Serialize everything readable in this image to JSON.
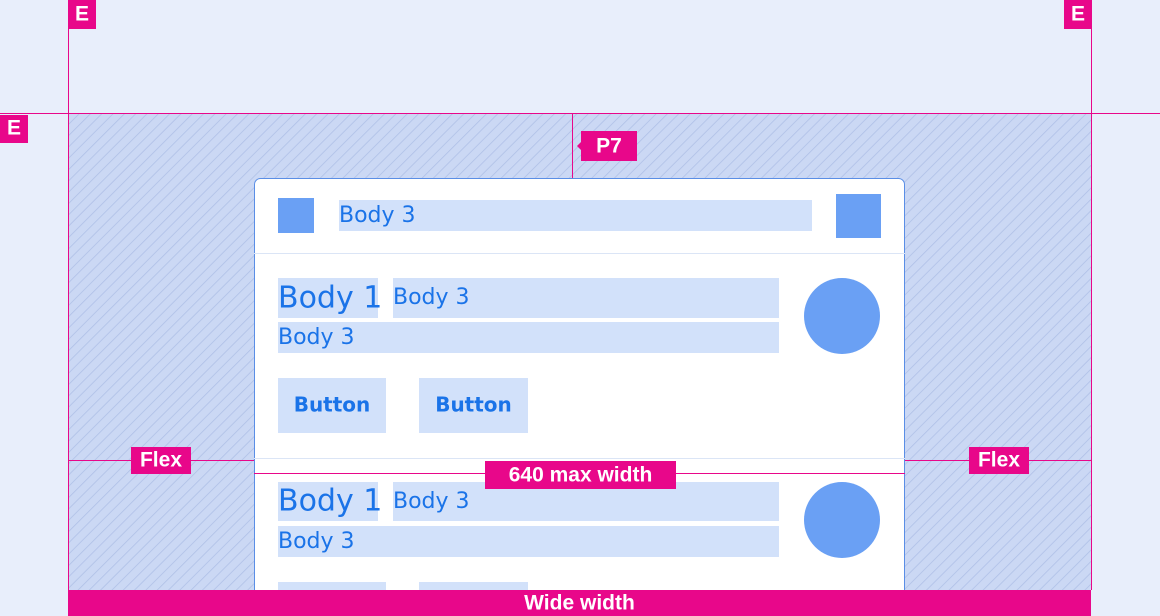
{
  "markers": {
    "edge_labels": [
      "E",
      "E",
      "E"
    ],
    "padding_label": "P7",
    "flex_labels": [
      "Flex",
      "Flex"
    ],
    "max_width_label": "640 max width",
    "wide_width_label": "Wide width"
  },
  "card": {
    "header": {
      "text": "Body 3"
    },
    "items": [
      {
        "title": "Body 1",
        "meta": "Body 3",
        "body": "Body 3",
        "buttons": [
          "Button",
          "Button"
        ]
      },
      {
        "title": "Body 1",
        "meta": "Body 3",
        "body": "Body 3"
      }
    ]
  }
}
